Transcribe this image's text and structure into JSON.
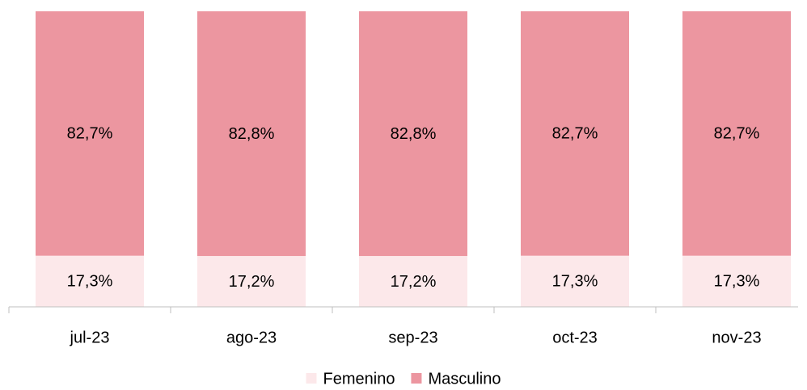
{
  "chart_data": {
    "type": "bar",
    "stacked": true,
    "categories": [
      "jul-23",
      "ago-23",
      "sep-23",
      "oct-23",
      "nov-23"
    ],
    "series": [
      {
        "name": "Femenino",
        "color": "#fce8ea",
        "values": [
          17.3,
          17.2,
          17.2,
          17.3,
          17.3
        ],
        "value_labels": [
          "17,3%",
          "17,2%",
          "17,2%",
          "17,3%",
          "17,3%"
        ]
      },
      {
        "name": "Masculino",
        "color": "#ec96a0",
        "values": [
          82.7,
          82.8,
          82.8,
          82.7,
          82.7
        ],
        "value_labels": [
          "82,7%",
          "82,8%",
          "82,8%",
          "82,7%",
          "82,7%"
        ]
      }
    ],
    "legend": "bottom"
  }
}
